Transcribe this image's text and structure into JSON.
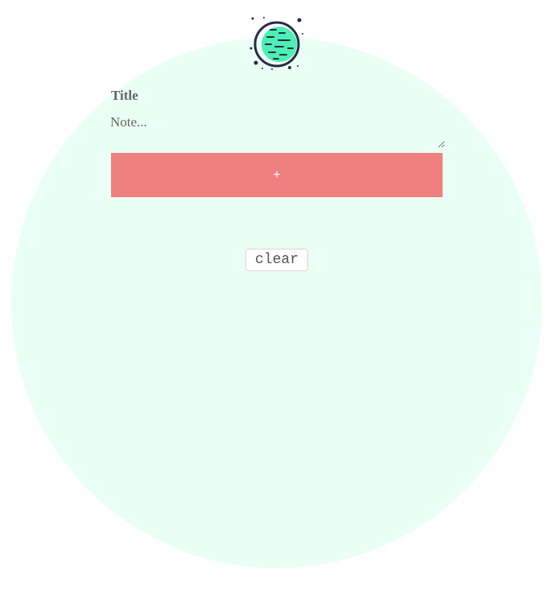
{
  "logo": {
    "icon": "planet-icon",
    "colors": {
      "planet": "#4cf0b4",
      "outline": "#2a2a48"
    }
  },
  "form": {
    "title_placeholder": "Title",
    "note_placeholder": "Note...",
    "add_label": "+"
  },
  "clear_label": "clear",
  "colors": {
    "background_circle": "#eafff5",
    "add_button": "#f08080",
    "text": "#666666"
  }
}
